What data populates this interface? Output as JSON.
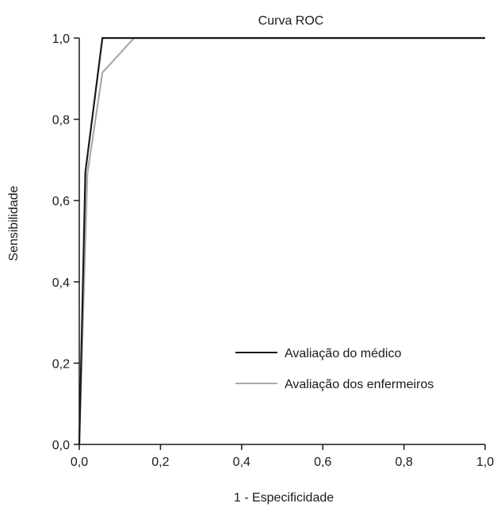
{
  "chart_data": {
    "type": "line",
    "title": "Curva ROC",
    "xlabel": "1 - Especificidade",
    "ylabel": "Sensibilidade",
    "xlim": [
      0,
      1
    ],
    "ylim": [
      0,
      1
    ],
    "x_ticks": [
      "0,0",
      "0,2",
      "0,4",
      "0,6",
      "0,8",
      "1,0"
    ],
    "y_ticks": [
      "0,0",
      "0,2",
      "0,4",
      "0,6",
      "0,8",
      "1,0"
    ],
    "grid": false,
    "legend_position": "bottom-right",
    "series": [
      {
        "name": "Avaliação do médico",
        "color": "#1a1a1a",
        "points": [
          [
            0,
            0
          ],
          [
            0.015,
            0.67
          ],
          [
            0.057,
            1.0
          ],
          [
            1.0,
            1.0
          ]
        ]
      },
      {
        "name": "Avaliação dos enfermeiros",
        "color": "#aaaaaa",
        "points": [
          [
            0,
            0
          ],
          [
            0.02,
            0.665
          ],
          [
            0.057,
            0.915
          ],
          [
            0.135,
            1.0
          ],
          [
            1.0,
            1.0
          ]
        ]
      }
    ]
  }
}
